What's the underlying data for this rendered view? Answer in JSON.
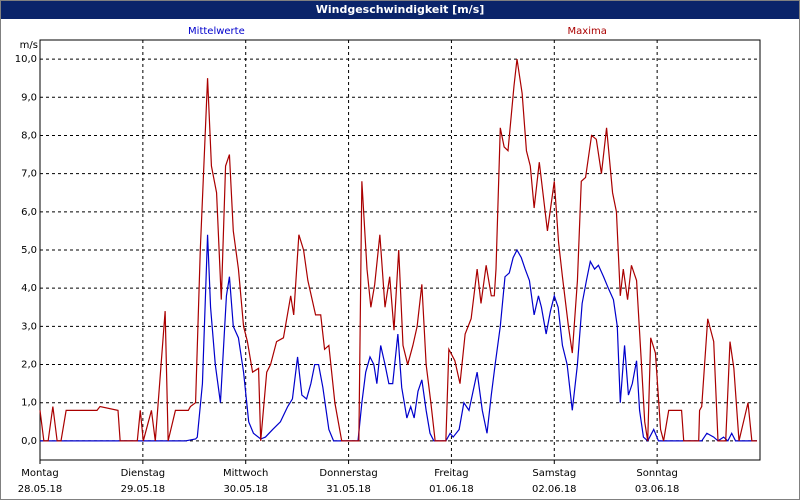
{
  "chart_data": {
    "type": "line",
    "title": "Windgeschwindigkeit [m/s]",
    "y_unit": "m/s",
    "grid": true,
    "xlim": [
      0,
      168
    ],
    "ylim": [
      -0.5,
      10.5
    ],
    "yticks": [
      {
        "value": 0,
        "label": "0,0"
      },
      {
        "value": 1,
        "label": "1,0"
      },
      {
        "value": 2,
        "label": "2,0"
      },
      {
        "value": 3,
        "label": "3,0"
      },
      {
        "value": 4,
        "label": "4,0"
      },
      {
        "value": 5,
        "label": "5,0"
      },
      {
        "value": 6,
        "label": "6,0"
      },
      {
        "value": 7,
        "label": "7,0"
      },
      {
        "value": 8,
        "label": "8,0"
      },
      {
        "value": 9,
        "label": "9,0"
      },
      {
        "value": 10,
        "label": "10,0"
      }
    ],
    "xticks": [
      {
        "value": 0,
        "label": "Montag"
      },
      {
        "value": 24,
        "label": "Dienstag"
      },
      {
        "value": 48,
        "label": "Mittwoch"
      },
      {
        "value": 72,
        "label": "Donnerstag"
      },
      {
        "value": 96,
        "label": "Freitag"
      },
      {
        "value": 120,
        "label": "Samstag"
      },
      {
        "value": 144,
        "label": "Sonntag"
      }
    ],
    "xtick_dates": [
      "28.05.18",
      "29.05.18",
      "30.05.18",
      "31.05.18",
      "01.06.18",
      "02.06.18",
      "03.06.18"
    ],
    "series": [
      {
        "name": "Mittelwerte",
        "color": "#0000cc",
        "x": [
          0,
          33.9,
          36.3,
          36.7,
          37.9,
          39.1,
          39.8,
          40.9,
          42.1,
          43.5,
          44.2,
          45.1,
          46.3,
          47.5,
          48.7,
          49.8,
          51.5,
          52.6,
          54.3,
          56.1,
          57.8,
          58.9,
          60.1,
          61.1,
          62.2,
          63.2,
          64.1,
          65,
          66,
          67.4,
          68.5,
          74.2,
          75.1,
          76,
          77,
          77.9,
          78.6,
          79.5,
          80.5,
          81.4,
          82.3,
          83.5,
          84.4,
          85.6,
          86.5,
          87.3,
          88.2,
          89.1,
          90.1,
          91,
          91.9,
          94.7,
          95.7,
          96.4,
          97.8,
          98.9,
          100.1,
          102,
          103.2,
          104.3,
          105.3,
          106.2,
          107.4,
          108.5,
          109.5,
          110.4,
          111.3,
          112.3,
          113.2,
          114.2,
          115.3,
          116.3,
          117,
          118.1,
          119.1,
          120,
          120.9,
          121.9,
          123,
          124.2,
          125.4,
          126.5,
          127.5,
          128.4,
          129.4,
          130.3,
          131.5,
          132.6,
          133.8,
          134.7,
          135.4,
          136.4,
          137.3,
          138.2,
          139.2,
          139.9,
          140.8,
          141.8,
          143.2,
          144.3,
          154.4,
          155.6,
          157.2,
          158.2,
          159.5,
          160.5,
          161.4,
          162.3,
          167.3
        ],
        "values": [
          0,
          0,
          0.05,
          0.1,
          1.5,
          5.4,
          3.5,
          2.0,
          1.0,
          3.8,
          4.3,
          3.0,
          2.7,
          1.8,
          0.5,
          0.2,
          0.05,
          0.1,
          0.3,
          0.5,
          0.9,
          1.1,
          2.2,
          1.2,
          1.1,
          1.5,
          2.0,
          2.0,
          1.4,
          0.3,
          0,
          0,
          1.0,
          1.8,
          2.2,
          2.0,
          1.5,
          2.5,
          2.0,
          1.5,
          1.5,
          2.8,
          1.4,
          0.6,
          0.9,
          0.6,
          1.3,
          1.6,
          0.8,
          0.2,
          0,
          0,
          0.2,
          0.1,
          0.3,
          1.0,
          0.8,
          1.8,
          0.8,
          0.2,
          1.2,
          2.0,
          3.0,
          4.3,
          4.4,
          4.8,
          5.0,
          4.8,
          4.5,
          4.2,
          3.3,
          3.8,
          3.5,
          2.8,
          3.4,
          3.8,
          3.5,
          2.5,
          2.0,
          0.8,
          2.0,
          3.6,
          4.2,
          4.7,
          4.5,
          4.6,
          4.3,
          4.0,
          3.7,
          3.0,
          1.0,
          2.5,
          1.2,
          1.5,
          2.1,
          0.8,
          0.1,
          0,
          0.3,
          0,
          0,
          0.2,
          0.1,
          0,
          0.1,
          0,
          0.2,
          0,
          0
        ]
      },
      {
        "name": "Maxima",
        "color": "#aa0000",
        "x": [
          0,
          0.9,
          1.9,
          3,
          4,
          4.9,
          6.1,
          13.3,
          14,
          18.2,
          18.7,
          22.7,
          23.4,
          24.1,
          26,
          26.9,
          29.2,
          29.9,
          31.6,
          34.6,
          35.1,
          36.3,
          37.4,
          39.1,
          40,
          41.2,
          42.3,
          43.3,
          44.2,
          45.1,
          46.3,
          47.5,
          48.4,
          49.6,
          51,
          51.5,
          52.9,
          53.8,
          55.2,
          56.8,
          58.5,
          59.2,
          60.4,
          61.5,
          62.5,
          64.3,
          65.5,
          66.4,
          67.4,
          68.8,
          70.4,
          74.4,
          75.1,
          76.3,
          77.2,
          78.1,
          79.3,
          80.5,
          81.6,
          82.6,
          83.7,
          84.7,
          85.8,
          87,
          88,
          89.1,
          90.1,
          91.2,
          92.2,
          94.7,
          95.4,
          96.8,
          98,
          99.2,
          100.6,
          102,
          102.9,
          104.1,
          105.3,
          106,
          106.4,
          107.4,
          108.3,
          109.2,
          110.6,
          111.3,
          112.5,
          113.5,
          114.4,
          115.3,
          116.5,
          118.4,
          120,
          121,
          121.9,
          123.3,
          124.2,
          125.4,
          126.3,
          127.3,
          128.7,
          129.8,
          131,
          132.2,
          133.6,
          134.5,
          135.4,
          136.1,
          137.1,
          138,
          139.2,
          140.4,
          141.1,
          141.8,
          142.5,
          143.6,
          144.8,
          145.5,
          146.7,
          149.7,
          150.2,
          153.7,
          153.9,
          154.4,
          155.8,
          157.2,
          158.2,
          160,
          161,
          161.9,
          163.1,
          165.2,
          166.1,
          167.3
        ],
        "values": [
          0.8,
          0,
          0,
          0.9,
          0,
          0,
          0.8,
          0.8,
          0.9,
          0.8,
          0,
          0,
          0.8,
          0,
          0.8,
          0,
          3.4,
          0,
          0.8,
          0.8,
          0.9,
          1.0,
          5.0,
          9.5,
          7.2,
          6.5,
          3.7,
          7.2,
          7.5,
          5.5,
          4.5,
          3.0,
          2.6,
          1.8,
          1.9,
          0,
          1.8,
          2.0,
          2.6,
          2.7,
          3.8,
          3.3,
          5.4,
          5.0,
          4.2,
          3.3,
          3.3,
          2.4,
          2.5,
          1.0,
          0,
          0,
          6.8,
          4.5,
          3.5,
          4.1,
          5.4,
          3.5,
          4.3,
          2.9,
          5.0,
          2.5,
          2.0,
          2.5,
          3.0,
          4.1,
          2.0,
          1.0,
          0,
          0,
          2.4,
          2.1,
          1.5,
          2.8,
          3.2,
          4.5,
          3.6,
          4.6,
          3.8,
          3.8,
          4.5,
          8.2,
          7.7,
          7.6,
          9.3,
          10.0,
          9.1,
          7.6,
          7.2,
          6.1,
          7.3,
          5.5,
          6.8,
          5.2,
          4.3,
          3.0,
          2.3,
          4.2,
          6.8,
          6.9,
          8.0,
          7.9,
          7.0,
          8.2,
          6.5,
          6.0,
          3.8,
          4.5,
          3.7,
          4.6,
          4.2,
          1.9,
          0.5,
          0,
          2.7,
          2.3,
          0.3,
          0,
          0.8,
          0.8,
          0,
          0,
          0.8,
          0.9,
          3.2,
          2.6,
          0,
          0,
          2.6,
          1.9,
          0,
          1.0,
          0,
          0
        ]
      }
    ]
  }
}
